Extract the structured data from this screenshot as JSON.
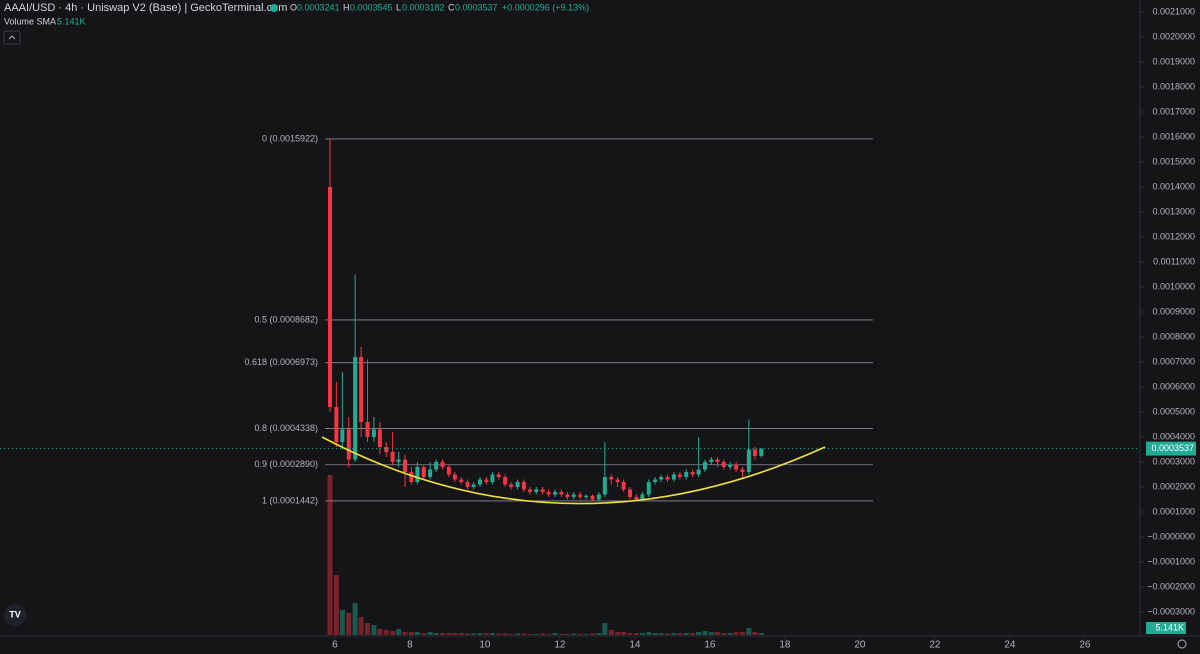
{
  "header": {
    "symbol": "AAAI/USD · 4h · Uniswap V2 (Base) | GeckoTerminal.com",
    "o_label": "O",
    "o": "0.0003241",
    "h_label": "H",
    "h": "0.0003545",
    "l_label": "L",
    "l": "0.0003182",
    "c_label": "C",
    "c": "0.0003537",
    "change": "+0.0000296 (+9.13%)",
    "volume_label": "Volume SMA",
    "volume_sma": "5.141K"
  },
  "chart_data": {
    "type": "candlestick",
    "grid": false,
    "up_color": "#22ab94",
    "down_color": "#f23645",
    "x": [
      5.87,
      6.04,
      6.2,
      6.37,
      6.54,
      6.7,
      6.87,
      7.04,
      7.2,
      7.37,
      7.54,
      7.7,
      7.87,
      8.04,
      8.2,
      8.37,
      8.54,
      8.7,
      8.87,
      9.04,
      9.2,
      9.37,
      9.54,
      9.7,
      9.87,
      10.04,
      10.2,
      10.37,
      10.54,
      10.7,
      10.87,
      11.04,
      11.2,
      11.37,
      11.54,
      11.7,
      11.87,
      12.04,
      12.2,
      12.37,
      12.54,
      12.7,
      12.87,
      13.04,
      13.2,
      13.37,
      13.54,
      13.7,
      13.87,
      14.04,
      14.2,
      14.37,
      14.54,
      14.7,
      14.87,
      15.04,
      15.2,
      15.37,
      15.54,
      15.7,
      15.87,
      16.04,
      16.2,
      16.37,
      16.54,
      16.7,
      16.87,
      17.04,
      17.2,
      17.37
    ],
    "open": [
      0.0014,
      0.00052,
      0.00038,
      0.00043,
      0.00031,
      0.00072,
      0.00046,
      0.0004,
      0.00043,
      0.00036,
      0.00034,
      0.0003,
      0.00031,
      0.00026,
      0.00022,
      0.00028,
      0.00024,
      0.00027,
      0.0003,
      0.00028,
      0.00025,
      0.00023,
      0.00022,
      0.0002,
      0.00021,
      0.00023,
      0.00022,
      0.00025,
      0.00024,
      0.00021,
      0.0002,
      0.00022,
      0.00019,
      0.00018,
      0.00019,
      0.00018,
      0.00017,
      0.00018,
      0.00017,
      0.00016,
      0.00017,
      0.00016,
      0.000165,
      0.00015,
      0.00017,
      0.00024,
      0.00023,
      0.00022,
      0.00019,
      0.00016,
      0.00015,
      0.00017,
      0.00022,
      0.00023,
      0.00024,
      0.00023,
      0.00025,
      0.00024,
      0.00026,
      0.00025,
      0.00027,
      0.0003,
      0.00031,
      0.0003,
      0.00028,
      0.00029,
      0.00027,
      0.00026,
      0.00035,
      0.0003241
    ],
    "high": [
      0.0015922,
      0.00062,
      0.00066,
      0.00048,
      0.00105,
      0.00076,
      0.00071,
      0.00048,
      0.00046,
      0.00038,
      0.00042,
      0.00034,
      0.00033,
      0.00028,
      0.0003,
      0.00029,
      0.0003,
      0.00031,
      0.00031,
      0.00029,
      0.00026,
      0.00024,
      0.00023,
      0.00022,
      0.00024,
      0.00024,
      0.00026,
      0.00026,
      0.00025,
      0.00022,
      0.00023,
      0.00023,
      0.0002,
      0.0002,
      0.0002,
      0.00019,
      0.00019,
      0.00019,
      0.00018,
      0.00018,
      0.00018,
      0.00017,
      0.00017,
      0.00018,
      0.00038,
      0.00025,
      0.00024,
      0.00023,
      0.0002,
      0.00017,
      0.00018,
      0.00023,
      0.00024,
      0.00025,
      0.00025,
      0.00026,
      0.00026,
      0.00027,
      0.00027,
      0.0004,
      0.00031,
      0.00032,
      0.00032,
      0.00031,
      0.0003,
      0.0003,
      0.00028,
      0.00047,
      0.00036,
      0.0003545
    ],
    "low": [
      0.0005,
      0.00036,
      0.00035,
      0.00028,
      0.0003,
      0.0004,
      0.00038,
      0.00038,
      0.00033,
      0.00032,
      0.00029,
      0.00028,
      0.0002,
      0.00021,
      0.00021,
      0.00023,
      0.00023,
      0.00026,
      0.00027,
      0.00024,
      0.00022,
      0.00021,
      0.00019,
      0.00019,
      0.0002,
      0.00021,
      0.00021,
      0.00023,
      0.0002,
      0.00019,
      0.00019,
      0.00018,
      0.00017,
      0.00017,
      0.00017,
      0.00016,
      0.00016,
      0.00016,
      0.00015,
      0.00015,
      0.00015,
      0.00015,
      0.000145,
      0.000145,
      0.00016,
      0.00021,
      0.0002,
      0.00018,
      0.00015,
      0.000145,
      0.000145,
      0.00016,
      0.00021,
      0.00022,
      0.00022,
      0.00022,
      0.00023,
      0.00023,
      0.00024,
      0.00024,
      0.00026,
      0.00029,
      0.00028,
      0.00027,
      0.00027,
      0.00026,
      0.00024,
      0.00025,
      0.00031,
      0.0003182
    ],
    "close": [
      0.00052,
      0.00038,
      0.00043,
      0.00031,
      0.00072,
      0.00046,
      0.0004,
      0.00043,
      0.00036,
      0.00034,
      0.0003,
      0.00031,
      0.00026,
      0.00022,
      0.00028,
      0.00024,
      0.00027,
      0.0003,
      0.00028,
      0.00025,
      0.00023,
      0.00022,
      0.0002,
      0.00021,
      0.00023,
      0.00022,
      0.00025,
      0.00024,
      0.00021,
      0.0002,
      0.00022,
      0.00019,
      0.00018,
      0.00019,
      0.00018,
      0.00017,
      0.00018,
      0.00017,
      0.00016,
      0.00017,
      0.00016,
      0.000165,
      0.00015,
      0.00017,
      0.00024,
      0.00023,
      0.00022,
      0.00019,
      0.00016,
      0.00015,
      0.00017,
      0.00022,
      0.00023,
      0.00024,
      0.00023,
      0.00025,
      0.00024,
      0.00026,
      0.00025,
      0.00027,
      0.0003,
      0.00031,
      0.0003,
      0.00028,
      0.00029,
      0.00027,
      0.00026,
      0.00035,
      0.0003241,
      0.0003537
    ],
    "volume": [
      160,
      60,
      25,
      22,
      32,
      18,
      12,
      10,
      6,
      5,
      4,
      6,
      3,
      3,
      3,
      2,
      3,
      2,
      2,
      2,
      2,
      2,
      1.5,
      1.5,
      2,
      2,
      2,
      1.5,
      1.5,
      1,
      1.5,
      1.5,
      1,
      1,
      1.5,
      1,
      2,
      1,
      1,
      1.5,
      1,
      1,
      1.5,
      2,
      12,
      5,
      3,
      3,
      2,
      2,
      2,
      3,
      2,
      2,
      1.5,
      2,
      2,
      2,
      2,
      3,
      4,
      3,
      3,
      2,
      2,
      3,
      3,
      7,
      3,
      2
    ],
    "xlim": [
      -2.93,
      27.47
    ],
    "xticks": [
      6,
      8,
      10,
      12,
      14,
      16,
      18,
      20,
      22,
      24,
      26
    ],
    "ylim": [
      -0.000396,
      0.002148
    ],
    "yticks": [
      {
        "value": 0.0021,
        "label": "0.0021000"
      },
      {
        "value": 0.002,
        "label": "0.0020000"
      },
      {
        "value": 0.0019,
        "label": "0.0019000"
      },
      {
        "value": 0.0018,
        "label": "0.0018000"
      },
      {
        "value": 0.0017,
        "label": "0.0017000"
      },
      {
        "value": 0.0016,
        "label": "0.0016000"
      },
      {
        "value": 0.0015,
        "label": "0.0015000"
      },
      {
        "value": 0.0014,
        "label": "0.0014000"
      },
      {
        "value": 0.0013,
        "label": "0.0013000"
      },
      {
        "value": 0.0012,
        "label": "0.0012000"
      },
      {
        "value": 0.0011,
        "label": "0.0011000"
      },
      {
        "value": 0.001,
        "label": "0.0010000"
      },
      {
        "value": 0.0009,
        "label": "0.0009000"
      },
      {
        "value": 0.0008,
        "label": "0.0008000"
      },
      {
        "value": 0.0007,
        "label": "0.0007000"
      },
      {
        "value": 0.0006,
        "label": "0.0006000"
      },
      {
        "value": 0.0005,
        "label": "0.0005000"
      },
      {
        "value": 0.0004,
        "label": "0.0004000"
      },
      {
        "value": 0.0003,
        "label": "0.0003000"
      },
      {
        "value": 0.0002,
        "label": "0.0002000"
      },
      {
        "value": 0.0001,
        "label": "0.0001000"
      },
      {
        "value": 0,
        "label": "−0.0000000"
      },
      {
        "value": -0.0001,
        "label": "−0.0001000"
      },
      {
        "value": -0.0002,
        "label": "−0.0002000"
      },
      {
        "value": -0.0003,
        "label": "−0.0003000"
      }
    ],
    "fib_levels": [
      {
        "price": 0.0015922,
        "label": "0 (0.0015922)"
      },
      {
        "price": 0.0008682,
        "label": "0.5 (0.0008682)"
      },
      {
        "price": 0.0006973,
        "label": "0.618 (0.0006973)"
      },
      {
        "price": 0.0004338,
        "label": "0.8 (0.0004338)"
      },
      {
        "price": 0.000289,
        "label": "0.9 (0.0002890)"
      },
      {
        "price": 0.0001442,
        "label": "1 (0.0001442)"
      }
    ],
    "last_price": 0.0003537,
    "volume_badge": "5.141K"
  }
}
